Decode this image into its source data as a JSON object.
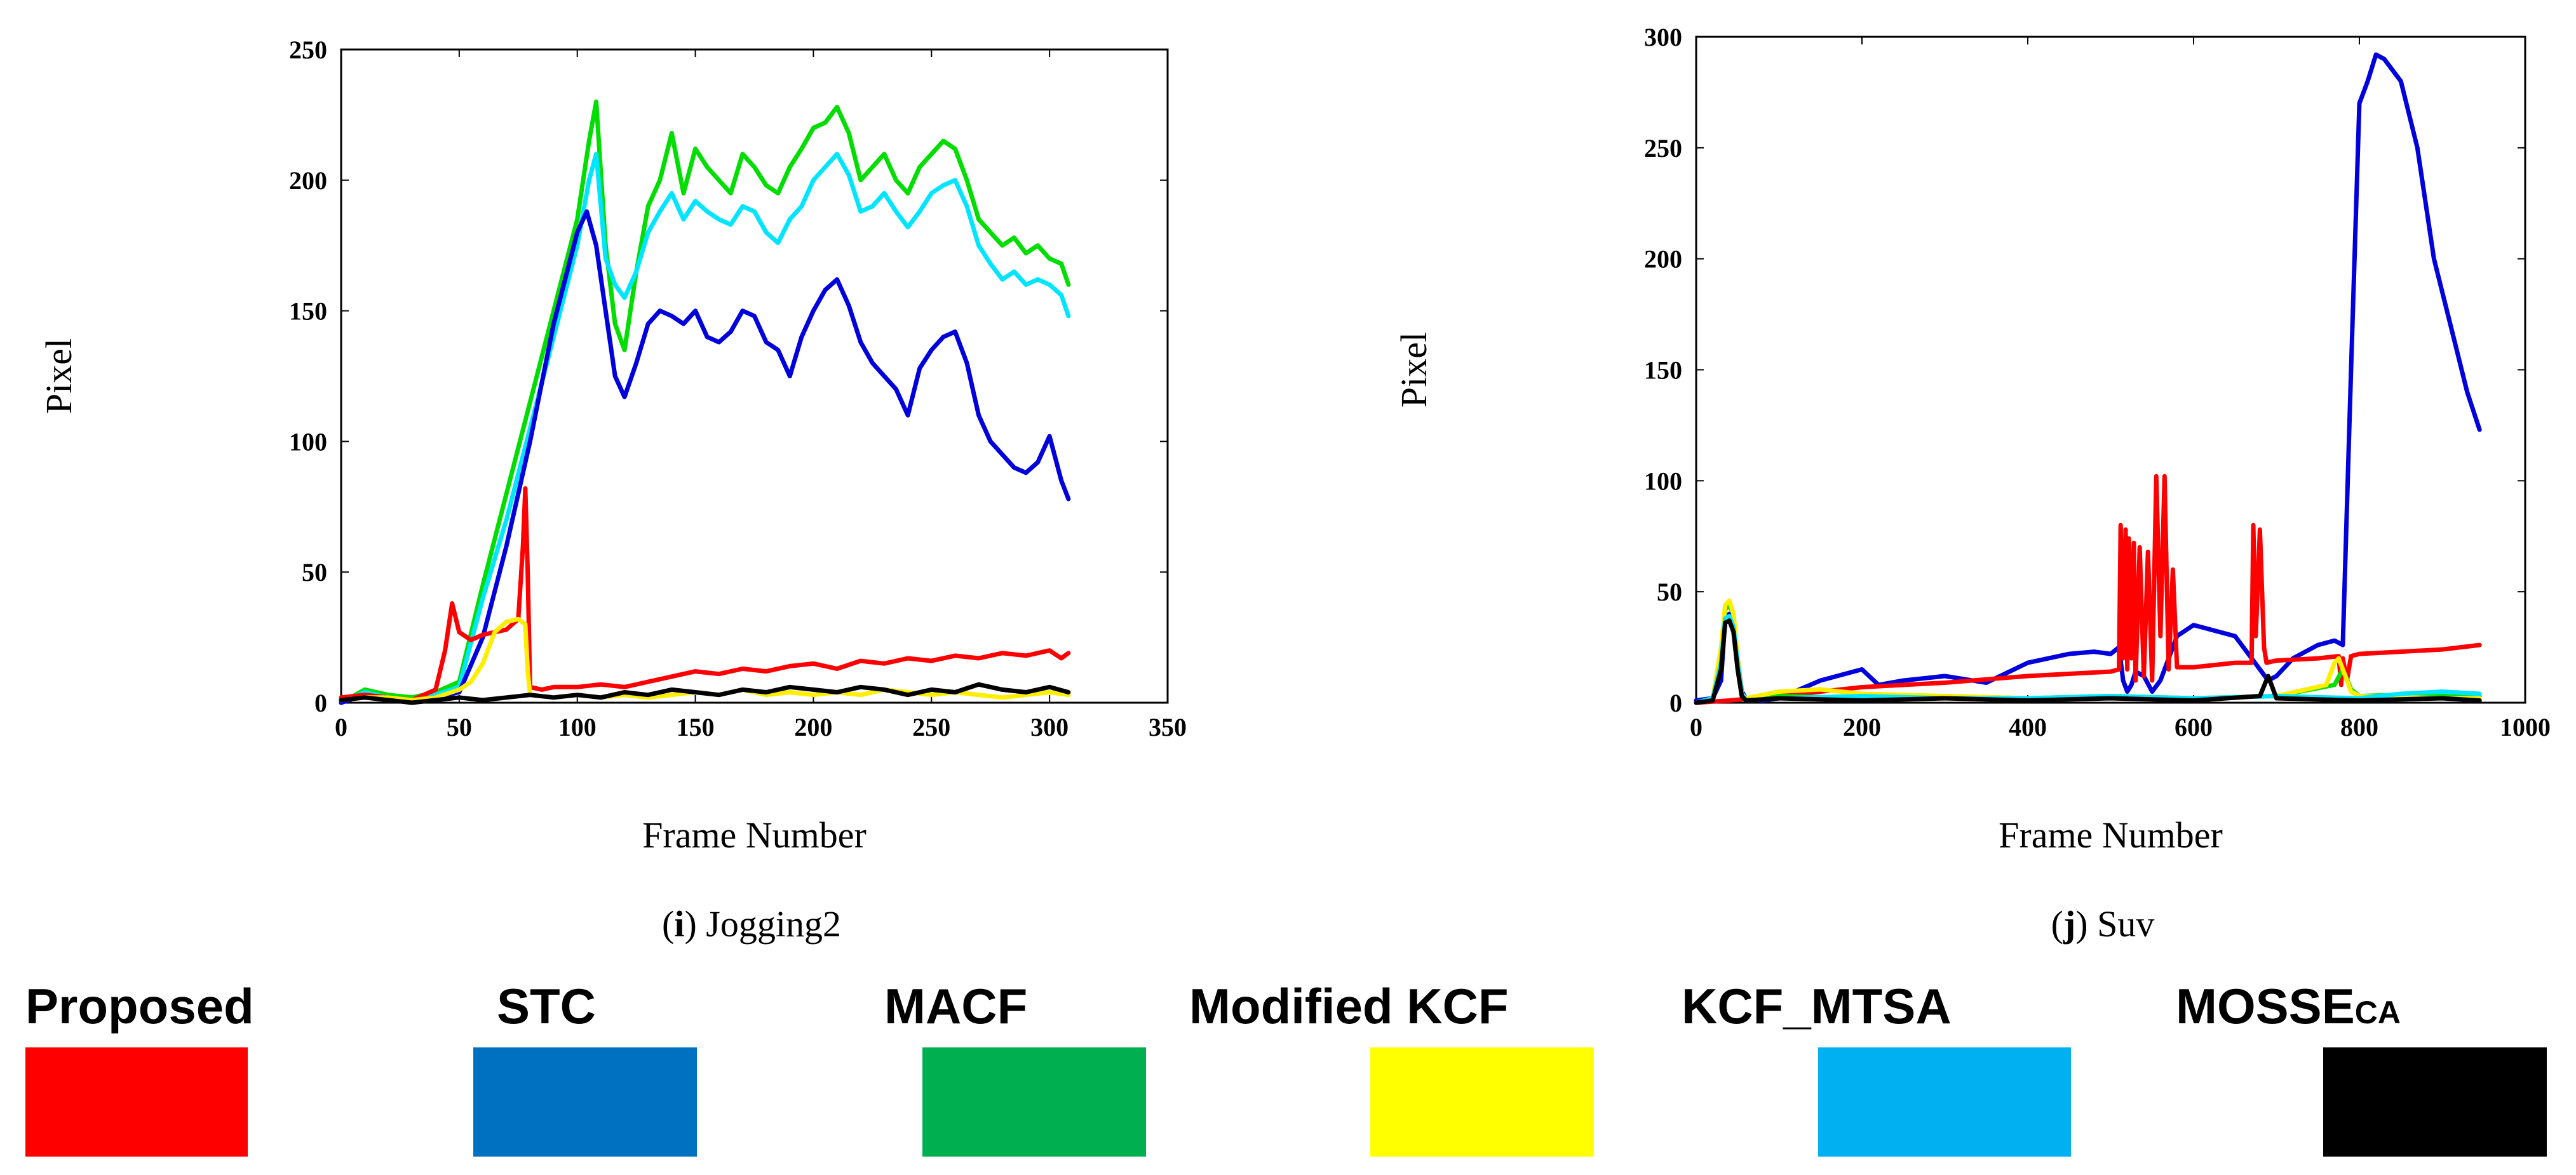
{
  "chart_data": [
    {
      "type": "line",
      "id": "jogging2",
      "caption_letter": "i",
      "caption_text": "Jogging2",
      "xlabel": "Frame Number",
      "ylabel": "Pixel",
      "xlim": [
        0,
        350
      ],
      "ylim": [
        0,
        250
      ],
      "xticks": [
        0,
        50,
        100,
        150,
        200,
        250,
        300,
        350
      ],
      "yticks": [
        0,
        50,
        100,
        150,
        200,
        250
      ],
      "series": [
        {
          "name": "MACF",
          "color": "#00dd00",
          "x": [
            0,
            10,
            20,
            30,
            40,
            50,
            60,
            70,
            80,
            90,
            100,
            105,
            108,
            112,
            116,
            120,
            125,
            130,
            135,
            140,
            145,
            150,
            155,
            160,
            165,
            170,
            175,
            180,
            185,
            190,
            195,
            200,
            205,
            210,
            215,
            220,
            225,
            230,
            235,
            240,
            245,
            250,
            255,
            260,
            265,
            270,
            275,
            280,
            285,
            290,
            295,
            300,
            305,
            308
          ],
          "y": [
            0,
            5,
            3,
            2,
            4,
            8,
            45,
            80,
            115,
            150,
            185,
            215,
            230,
            175,
            145,
            135,
            165,
            190,
            200,
            218,
            195,
            212,
            205,
            200,
            195,
            210,
            205,
            198,
            195,
            205,
            212,
            220,
            222,
            228,
            218,
            200,
            205,
            210,
            200,
            195,
            205,
            210,
            215,
            212,
            200,
            185,
            180,
            175,
            178,
            172,
            175,
            170,
            168,
            160
          ]
        },
        {
          "name": "KCF_MTSA",
          "color": "#00e5ff",
          "x": [
            0,
            10,
            20,
            30,
            40,
            50,
            60,
            70,
            80,
            90,
            100,
            105,
            108,
            112,
            116,
            120,
            125,
            130,
            135,
            140,
            145,
            150,
            155,
            160,
            165,
            170,
            175,
            180,
            185,
            190,
            195,
            200,
            205,
            210,
            215,
            220,
            225,
            230,
            235,
            240,
            245,
            250,
            255,
            260,
            265,
            270,
            275,
            280,
            285,
            290,
            295,
            300,
            305,
            308
          ],
          "y": [
            0,
            4,
            2,
            1,
            3,
            6,
            40,
            70,
            105,
            140,
            175,
            200,
            210,
            170,
            160,
            155,
            165,
            180,
            188,
            195,
            185,
            192,
            188,
            185,
            183,
            190,
            188,
            180,
            176,
            185,
            190,
            200,
            205,
            210,
            202,
            188,
            190,
            195,
            188,
            182,
            188,
            195,
            198,
            200,
            190,
            175,
            168,
            162,
            165,
            160,
            162,
            160,
            156,
            148
          ]
        },
        {
          "name": "STC",
          "color": "#0000dd",
          "x": [
            0,
            10,
            20,
            30,
            40,
            50,
            60,
            70,
            80,
            90,
            100,
            104,
            108,
            112,
            116,
            120,
            125,
            130,
            135,
            140,
            145,
            150,
            155,
            160,
            165,
            170,
            175,
            180,
            185,
            190,
            195,
            200,
            205,
            210,
            215,
            220,
            225,
            230,
            235,
            240,
            245,
            250,
            255,
            260,
            265,
            270,
            275,
            280,
            285,
            290,
            295,
            300,
            305,
            308
          ],
          "y": [
            0,
            3,
            2,
            1,
            2,
            4,
            25,
            60,
            100,
            145,
            180,
            188,
            175,
            150,
            125,
            117,
            130,
            145,
            150,
            148,
            145,
            150,
            140,
            138,
            142,
            150,
            148,
            138,
            135,
            125,
            140,
            150,
            158,
            162,
            152,
            138,
            130,
            125,
            120,
            110,
            128,
            135,
            140,
            142,
            130,
            110,
            100,
            95,
            90,
            88,
            92,
            102,
            85,
            78
          ]
        },
        {
          "name": "Proposed",
          "color": "#ff0000",
          "x": [
            0,
            10,
            20,
            30,
            40,
            44,
            47,
            50,
            55,
            60,
            65,
            70,
            75,
            77,
            78,
            79,
            80,
            85,
            90,
            100,
            110,
            120,
            130,
            140,
            150,
            160,
            170,
            180,
            190,
            200,
            210,
            220,
            230,
            240,
            250,
            260,
            270,
            280,
            290,
            300,
            305,
            308
          ],
          "y": [
            2,
            3,
            2,
            1,
            5,
            20,
            38,
            27,
            24,
            26,
            27,
            28,
            32,
            60,
            82,
            50,
            6,
            5,
            6,
            6,
            7,
            6,
            8,
            10,
            12,
            11,
            13,
            12,
            14,
            15,
            13,
            16,
            15,
            17,
            16,
            18,
            17,
            19,
            18,
            20,
            17,
            19
          ]
        },
        {
          "name": "Modified KCF",
          "color": "#ffee00",
          "x": [
            0,
            10,
            20,
            30,
            40,
            50,
            55,
            60,
            65,
            70,
            75,
            78,
            79,
            80,
            90,
            100,
            110,
            120,
            130,
            140,
            150,
            160,
            170,
            180,
            190,
            200,
            210,
            220,
            230,
            240,
            250,
            260,
            270,
            280,
            290,
            300,
            308
          ],
          "y": [
            1,
            2,
            2,
            1,
            2,
            5,
            8,
            15,
            27,
            31,
            32,
            30,
            12,
            3,
            2,
            3,
            2,
            3,
            2,
            3,
            4,
            3,
            5,
            3,
            4,
            3,
            4,
            3,
            5,
            4,
            3,
            4,
            3,
            2,
            3,
            4,
            3
          ]
        },
        {
          "name": "MOSSE_CA",
          "color": "#000000",
          "x": [
            0,
            10,
            20,
            30,
            40,
            50,
            60,
            70,
            80,
            90,
            100,
            110,
            120,
            130,
            140,
            150,
            160,
            170,
            180,
            190,
            200,
            210,
            220,
            230,
            240,
            250,
            260,
            270,
            280,
            290,
            300,
            308
          ],
          "y": [
            1,
            2,
            1,
            0,
            1,
            2,
            1,
            2,
            3,
            2,
            3,
            2,
            4,
            3,
            5,
            4,
            3,
            5,
            4,
            6,
            5,
            4,
            6,
            5,
            3,
            5,
            4,
            7,
            5,
            4,
            6,
            4
          ]
        }
      ]
    },
    {
      "type": "line",
      "id": "suv",
      "caption_letter": "j",
      "caption_text": "Suv",
      "xlabel": "Frame Number",
      "ylabel": "Pixel",
      "xlim": [
        0,
        1000
      ],
      "ylim": [
        0,
        300
      ],
      "xticks": [
        0,
        200,
        400,
        600,
        800,
        1000
      ],
      "yticks": [
        0,
        50,
        100,
        150,
        200,
        250,
        300
      ],
      "series": [
        {
          "name": "STC",
          "color": "#0000dd",
          "x": [
            0,
            20,
            30,
            35,
            40,
            45,
            50,
            55,
            60,
            80,
            100,
            150,
            200,
            220,
            250,
            300,
            350,
            400,
            450,
            480,
            500,
            510,
            515,
            520,
            525,
            530,
            540,
            550,
            560,
            580,
            600,
            620,
            650,
            680,
            690,
            700,
            720,
            750,
            770,
            780,
            790,
            800,
            810,
            820,
            830,
            850,
            870,
            890,
            910,
            930,
            945
          ],
          "y": [
            1,
            2,
            10,
            38,
            40,
            35,
            20,
            5,
            2,
            1,
            2,
            10,
            15,
            8,
            10,
            12,
            9,
            18,
            22,
            23,
            22,
            25,
            10,
            5,
            8,
            14,
            12,
            5,
            10,
            30,
            35,
            33,
            30,
            15,
            10,
            12,
            20,
            26,
            28,
            26,
            150,
            270,
            280,
            292,
            290,
            280,
            250,
            200,
            170,
            140,
            123
          ]
        },
        {
          "name": "Proposed",
          "color": "#ff0000",
          "x": [
            0,
            40,
            100,
            200,
            300,
            400,
            500,
            510,
            512,
            515,
            518,
            520,
            522,
            525,
            528,
            530,
            535,
            540,
            545,
            550,
            555,
            560,
            565,
            570,
            575,
            580,
            600,
            650,
            670,
            672,
            675,
            680,
            685,
            688,
            700,
            750,
            775,
            778,
            780,
            785,
            790,
            800,
            850,
            900,
            945
          ],
          "y": [
            0,
            1,
            3,
            7,
            9,
            12,
            14,
            15,
            80,
            20,
            78,
            15,
            74,
            20,
            72,
            10,
            70,
            12,
            68,
            10,
            102,
            30,
            102,
            15,
            60,
            16,
            16,
            18,
            18,
            80,
            30,
            78,
            25,
            18,
            19,
            20,
            21,
            8,
            20,
            10,
            21,
            22,
            23,
            24,
            26
          ]
        },
        {
          "name": "MACF",
          "color": "#00dd00",
          "x": [
            0,
            20,
            30,
            35,
            40,
            45,
            50,
            55,
            60,
            100,
            200,
            300,
            400,
            500,
            600,
            700,
            770,
            780,
            790,
            800,
            900,
            945
          ],
          "y": [
            0,
            2,
            20,
            42,
            44,
            40,
            20,
            4,
            2,
            3,
            2,
            3,
            2,
            3,
            2,
            3,
            8,
            15,
            6,
            3,
            4,
            3
          ]
        },
        {
          "name": "Modified KCF",
          "color": "#ffee00",
          "x": [
            0,
            20,
            30,
            35,
            40,
            45,
            50,
            55,
            60,
            100,
            150,
            200,
            300,
            400,
            500,
            600,
            700,
            760,
            770,
            775,
            780,
            790,
            800,
            900,
            945
          ],
          "y": [
            0,
            2,
            25,
            44,
            46,
            40,
            20,
            4,
            2,
            5,
            6,
            4,
            3,
            2,
            3,
            2,
            3,
            8,
            18,
            20,
            15,
            5,
            3,
            2,
            2
          ]
        },
        {
          "name": "KCF_MTSA",
          "color": "#00e5ff",
          "x": [
            0,
            20,
            30,
            35,
            40,
            45,
            50,
            55,
            60,
            100,
            200,
            300,
            400,
            500,
            600,
            700,
            800,
            850,
            900,
            945
          ],
          "y": [
            0,
            2,
            18,
            38,
            39,
            34,
            18,
            4,
            1,
            2,
            3,
            2,
            2,
            3,
            2,
            3,
            2,
            4,
            5,
            4
          ]
        },
        {
          "name": "MOSSE_CA",
          "color": "#000000",
          "x": [
            0,
            20,
            30,
            35,
            40,
            45,
            50,
            55,
            60,
            100,
            200,
            300,
            400,
            500,
            600,
            680,
            690,
            700,
            800,
            900,
            945
          ],
          "y": [
            0,
            1,
            15,
            36,
            37,
            32,
            15,
            3,
            1,
            2,
            1,
            2,
            1,
            2,
            1,
            3,
            12,
            2,
            1,
            2,
            1
          ]
        }
      ]
    }
  ],
  "legend": [
    {
      "label": "Proposed",
      "subscript": "",
      "color": "#ff0000"
    },
    {
      "label": "STC",
      "subscript": "",
      "color": "#0070c0"
    },
    {
      "label": "MACF",
      "subscript": "",
      "color": "#00b050"
    },
    {
      "label": "Modified KCF",
      "subscript": "",
      "color": "#ffff00"
    },
    {
      "label": "KCF_MTSA",
      "subscript": "",
      "color": "#00b0f0"
    },
    {
      "label": "MOSSE",
      "subscript": "CA",
      "color": "#000000"
    }
  ]
}
